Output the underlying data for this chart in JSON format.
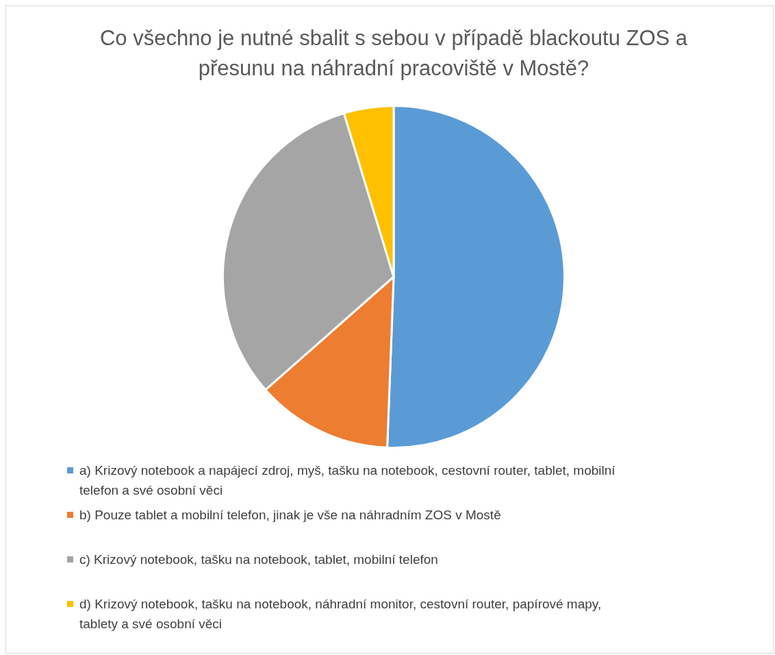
{
  "chart_data": {
    "type": "pie",
    "title": "Co všechno je nutné sbalit s sebou v případě blackoutu ZOS a přesunu na náhradní pracoviště v Mostě?",
    "categories": [
      "a) Krizový notebook a napájecí zdroj, myš, tašku na notebook, cestovní router, tablet, mobilní telefon a své osobní věci",
      "b) Pouze tablet a mobilní telefon, jinak je vše na náhradním ZOS v Mostě",
      "c) Krizový notebook, tašku na notebook, tablet, mobilní telefon",
      "d) Krizový notebook, tašku na notebook, náhradní monitor, cestovní router, papírové mapy, tablety a své osobní věci"
    ],
    "values": [
      50.6,
      12.9,
      31.8,
      4.7
    ],
    "colors": [
      "#5b9bd5",
      "#ed7d31",
      "#a5a5a5",
      "#ffc000"
    ],
    "legend": "bottom"
  }
}
